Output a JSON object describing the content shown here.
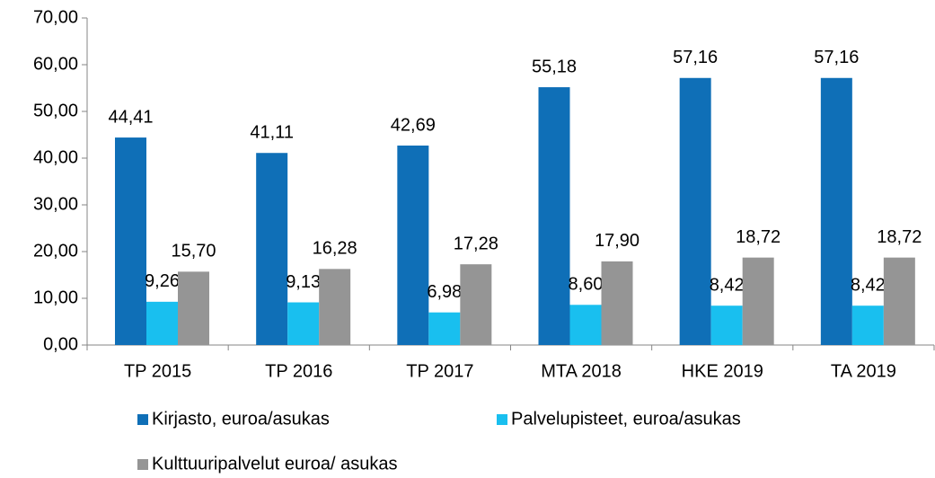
{
  "chart_data": {
    "type": "bar",
    "categories": [
      "TP 2015",
      "TP 2016",
      "TP 2017",
      "MTA 2018",
      "HKE 2019",
      "TA 2019"
    ],
    "series": [
      {
        "name": "Kirjasto, euroa/asukas",
        "color": "#0f6fb7",
        "values": [
          44.41,
          41.11,
          42.69,
          55.18,
          57.16,
          57.16
        ],
        "value_labels": [
          "44,41",
          "41,11",
          "42,69",
          "55,18",
          "57,16",
          "57,16"
        ]
      },
      {
        "name": "Palvelupisteet, euroa/asukas",
        "color": "#19bfef",
        "values": [
          9.26,
          9.13,
          6.98,
          8.6,
          8.42,
          8.42
        ],
        "value_labels": [
          "9,26",
          "9,13",
          "6,98",
          "8,60",
          "8,42",
          "8,42"
        ]
      },
      {
        "name": "Kulttuuripalvelut euroa/ asukas",
        "color": "#959595",
        "values": [
          15.7,
          16.28,
          17.28,
          17.9,
          18.72,
          18.72
        ],
        "value_labels": [
          "15,70",
          "16,28",
          "17,28",
          "17,90",
          "18,72",
          "18,72"
        ]
      }
    ],
    "ylim": [
      0,
      70
    ],
    "yticks": [
      {
        "value": 0,
        "label": "0,00"
      },
      {
        "value": 10,
        "label": "10,00"
      },
      {
        "value": 20,
        "label": "20,00"
      },
      {
        "value": 30,
        "label": "30,00"
      },
      {
        "value": 40,
        "label": "40,00"
      },
      {
        "value": 50,
        "label": "50,00"
      },
      {
        "value": 60,
        "label": "60,00"
      },
      {
        "value": 70,
        "label": "70,00"
      }
    ],
    "grid": false
  }
}
